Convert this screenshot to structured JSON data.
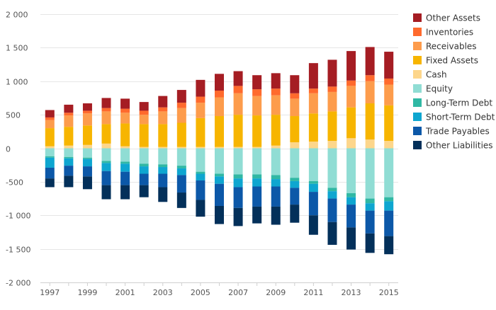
{
  "chart_data": {
    "type": "bar",
    "stacked": true,
    "title": "",
    "xlabel": "",
    "ylabel": "",
    "ylim": [
      -2000,
      2000
    ],
    "yticks": [
      2000,
      1500,
      1000,
      500,
      0,
      -500,
      -1000,
      -1500,
      -2000
    ],
    "ytick_labels": [
      "2 000",
      "1 500",
      "1 000",
      "500",
      "0",
      "-500",
      "-1 000",
      "-1 500",
      "-2 000"
    ],
    "categories": [
      "1997",
      "1998",
      "1999",
      "2000",
      "2001",
      "2002",
      "2003",
      "2004",
      "2005",
      "2006",
      "2007",
      "2008",
      "2009",
      "2010",
      "2011",
      "2012",
      "2013",
      "2014",
      "2015"
    ],
    "xtick_labels": [
      "1997",
      "1999",
      "2001",
      "2003",
      "2005",
      "2007",
      "2009",
      "2011",
      "2013",
      "2015"
    ],
    "grid": true,
    "legend_position": "right",
    "series": [
      {
        "name": "Cash",
        "group": "assets",
        "color": "#fdd68b",
        "values": [
          30,
          40,
          50,
          70,
          30,
          20,
          20,
          20,
          20,
          20,
          20,
          20,
          40,
          90,
          100,
          110,
          150,
          130,
          110
        ]
      },
      {
        "name": "Fixed Assets",
        "group": "assets",
        "color": "#f7b500",
        "values": [
          270,
          280,
          290,
          290,
          340,
          340,
          340,
          360,
          430,
          460,
          480,
          470,
          460,
          390,
          420,
          440,
          460,
          540,
          530
        ]
      },
      {
        "name": "Receivables",
        "group": "assets",
        "color": "#fd9c4c",
        "values": [
          120,
          170,
          180,
          190,
          160,
          140,
          190,
          220,
          230,
          280,
          320,
          290,
          290,
          260,
          300,
          290,
          320,
          330,
          310
        ]
      },
      {
        "name": "Inventories",
        "group": "assets",
        "color": "#ff6a2d",
        "values": [
          40,
          40,
          40,
          50,
          60,
          60,
          60,
          80,
          90,
          100,
          110,
          100,
          100,
          80,
          70,
          80,
          80,
          90,
          90
        ]
      },
      {
        "name": "Other Assets",
        "group": "assets",
        "color": "#a51d23",
        "values": [
          110,
          120,
          110,
          150,
          150,
          130,
          170,
          190,
          250,
          250,
          220,
          210,
          230,
          270,
          380,
          400,
          440,
          420,
          400
        ]
      },
      {
        "name": "Equity",
        "group": "liabilities",
        "color": "#90ddd4",
        "values": [
          -120,
          -130,
          -140,
          -190,
          -200,
          -230,
          -240,
          -260,
          -350,
          -380,
          -390,
          -390,
          -400,
          -440,
          -490,
          -590,
          -670,
          -750,
          -730
        ]
      },
      {
        "name": "Long-Term Debt",
        "group": "liabilities",
        "color": "#30b8a4",
        "values": [
          -20,
          -20,
          -20,
          -30,
          -30,
          -40,
          -40,
          -40,
          -30,
          -40,
          -60,
          -60,
          -60,
          -50,
          -40,
          -50,
          -60,
          -70,
          -60
        ]
      },
      {
        "name": "Short-Term Debt",
        "group": "liabilities",
        "color": "#0ea6d0",
        "values": [
          -150,
          -110,
          -110,
          -120,
          -120,
          -110,
          -100,
          -100,
          -100,
          -110,
          -130,
          -120,
          -110,
          -100,
          -120,
          -110,
          -110,
          -110,
          -140
        ]
      },
      {
        "name": "Trade Payables",
        "group": "liabilities",
        "color": "#0c58a8",
        "values": [
          -160,
          -150,
          -150,
          -210,
          -200,
          -170,
          -200,
          -260,
          -290,
          -330,
          -310,
          -300,
          -300,
          -250,
          -350,
          -350,
          -340,
          -340,
          -380
        ]
      },
      {
        "name": "Other Liabilities",
        "group": "liabilities",
        "color": "#03305a",
        "values": [
          -130,
          -170,
          -190,
          -210,
          -210,
          -180,
          -220,
          -230,
          -250,
          -270,
          -270,
          -250,
          -270,
          -270,
          -290,
          -340,
          -330,
          -290,
          -270
        ]
      }
    ],
    "legend_order": [
      "Other Assets",
      "Inventories",
      "Receivables",
      "Fixed Assets",
      "Cash",
      "Equity",
      "Long-Term Debt",
      "Short-Term Debt",
      "Trade Payables",
      "Other Liabilities"
    ]
  }
}
